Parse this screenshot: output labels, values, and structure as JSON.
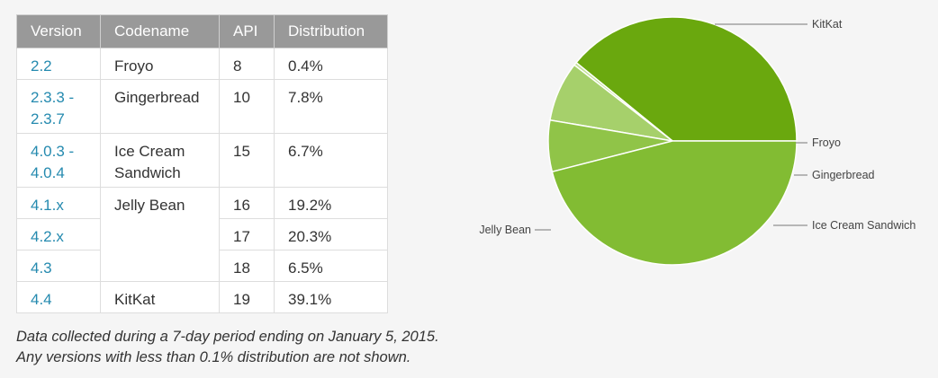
{
  "table": {
    "headers": [
      "Version",
      "Codename",
      "API",
      "Distribution"
    ],
    "rows": [
      {
        "version": "2.2",
        "codename": "Froyo",
        "api": "8",
        "distribution": "0.4%"
      },
      {
        "version": "2.3.3 - 2.3.7",
        "codename": "Gingerbread",
        "api": "10",
        "distribution": "7.8%"
      },
      {
        "version": "4.0.3 - 4.0.4",
        "codename": "Ice Cream Sandwich",
        "api": "15",
        "distribution": "6.7%"
      },
      {
        "version": "4.1.x",
        "codename": "Jelly Bean",
        "api": "16",
        "distribution": "19.2%"
      },
      {
        "version": "4.2.x",
        "codename": "",
        "api": "17",
        "distribution": "20.3%"
      },
      {
        "version": "4.3",
        "codename": "",
        "api": "18",
        "distribution": "6.5%"
      },
      {
        "version": "4.4",
        "codename": "KitKat",
        "api": "19",
        "distribution": "39.1%"
      }
    ]
  },
  "note": {
    "line1": "Data collected during a 7-day period ending on January 5, 2015.",
    "line2": "Any versions with less than 0.1% distribution are not shown."
  },
  "chart_data": {
    "type": "pie",
    "title": "",
    "slices": [
      {
        "label": "KitKat",
        "value": 39.1,
        "color": "#6aa80e"
      },
      {
        "label": "Froyo",
        "value": 0.4,
        "color": "#c5e09a"
      },
      {
        "label": "Gingerbread",
        "value": 7.8,
        "color": "#a6d06b"
      },
      {
        "label": "Ice Cream Sandwich",
        "value": 6.7,
        "color": "#90c448"
      },
      {
        "label": "Jelly Bean",
        "value": 46.0,
        "color": "#82bc33"
      }
    ],
    "start_angle_deg": 0,
    "direction": "counterclockwise"
  }
}
